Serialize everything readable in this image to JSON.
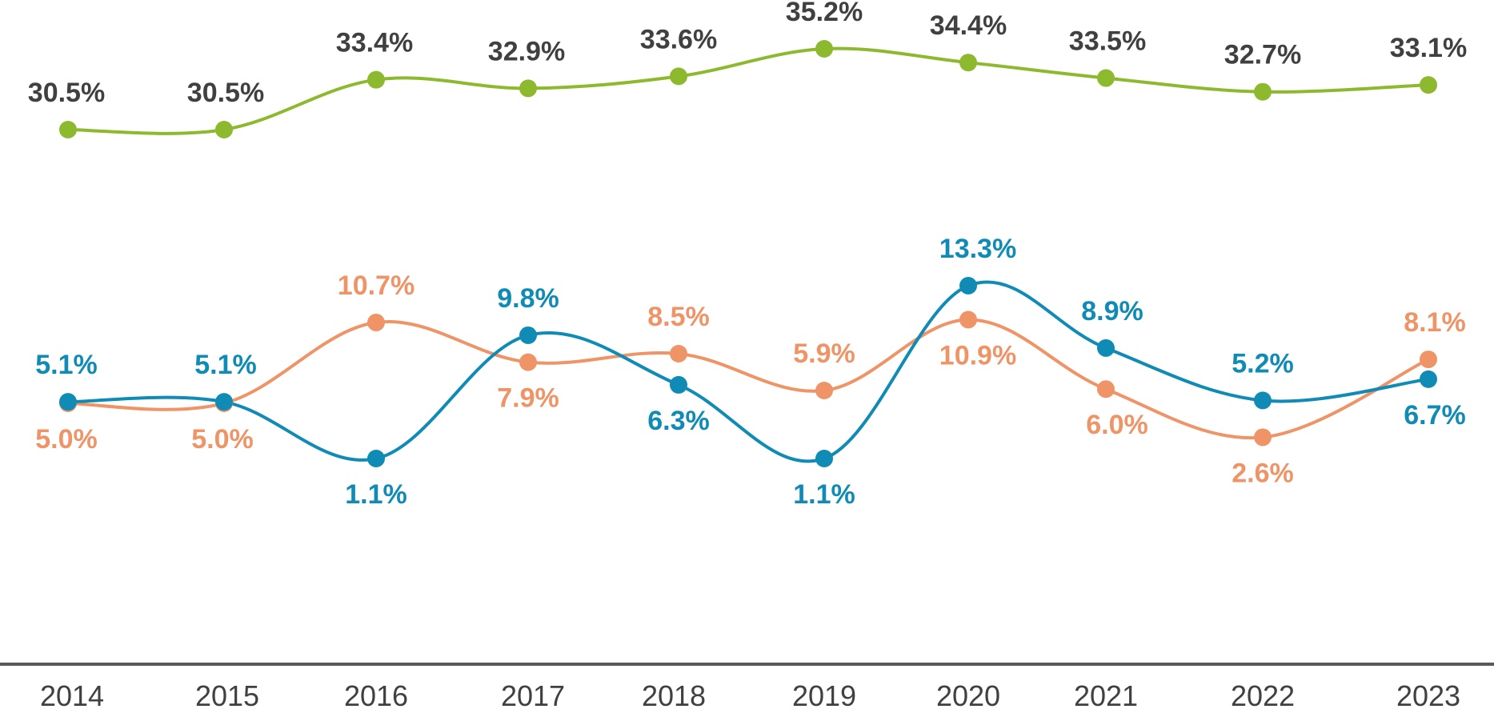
{
  "chart_data": {
    "type": "line",
    "title": "",
    "xlabel": "",
    "ylabel": "",
    "grid": false,
    "legend": "none",
    "categories": [
      "2014",
      "2015",
      "2016",
      "2017",
      "2018",
      "2019",
      "2020",
      "2021",
      "2022",
      "2023"
    ],
    "series": [
      {
        "name": "green",
        "color": "#8DB92E",
        "values": [
          30.5,
          30.5,
          33.4,
          32.9,
          33.6,
          35.2,
          34.4,
          33.5,
          32.7,
          33.1
        ],
        "labels": [
          "30.5%",
          "30.5%",
          "33.4%",
          "32.9%",
          "33.6%",
          "35.2%",
          "34.4%",
          "33.5%",
          "32.7%",
          "33.1%"
        ],
        "label_color": "#404040"
      },
      {
        "name": "orange",
        "color": "#EE9467",
        "values": [
          5.0,
          5.0,
          10.7,
          7.9,
          8.5,
          5.9,
          10.9,
          6.0,
          2.6,
          8.1
        ],
        "labels": [
          "5.0%",
          "5.0%",
          "10.7%",
          "7.9%",
          "8.5%",
          "5.9%",
          "10.9%",
          "6.0%",
          "2.6%",
          "8.1%"
        ],
        "label_color": "#EE9467"
      },
      {
        "name": "blue",
        "color": "#0F8BB5",
        "values": [
          5.1,
          5.1,
          1.1,
          9.8,
          6.3,
          1.1,
          13.3,
          8.9,
          5.2,
          6.7
        ],
        "labels": [
          "5.1%",
          "5.1%",
          "1.1%",
          "9.8%",
          "6.3%",
          "1.1%",
          "13.3%",
          "8.9%",
          "5.2%",
          "6.7%"
        ],
        "label_color": "#0F8BB5"
      }
    ]
  }
}
